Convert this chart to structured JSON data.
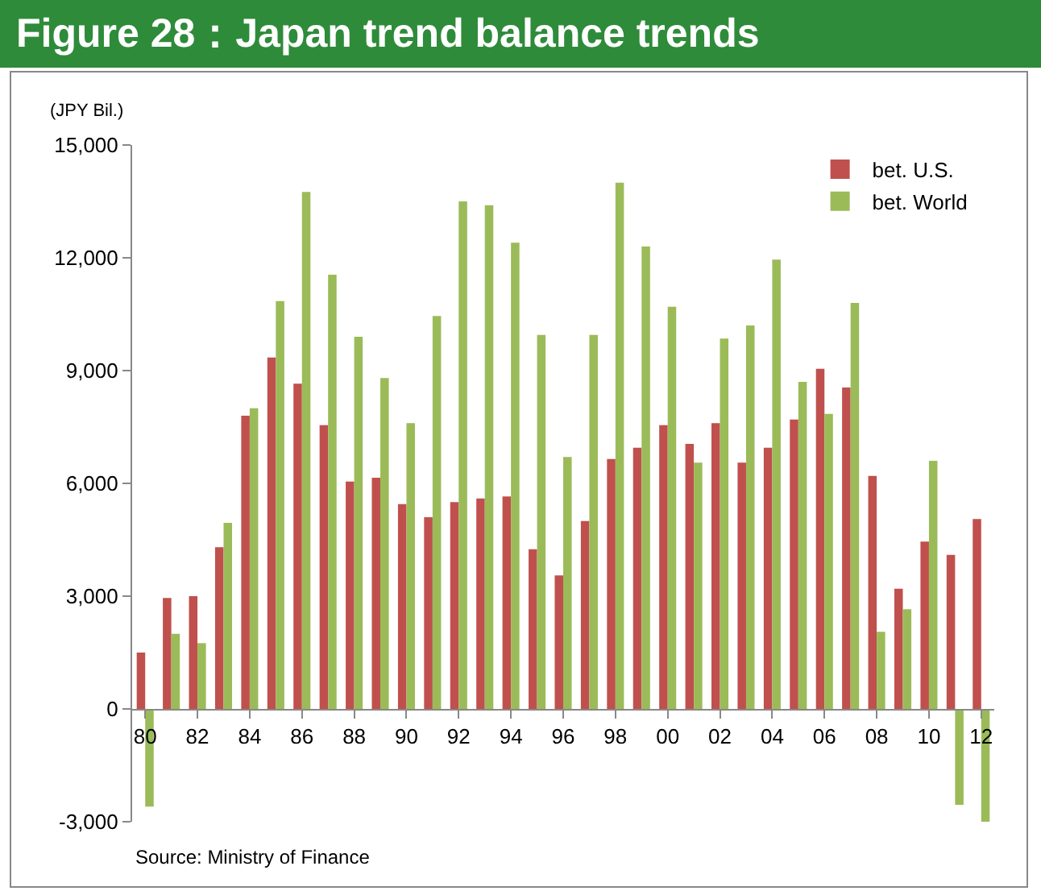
{
  "chart_data": {
    "type": "bar",
    "title": "Figure 28：Japan trend balance trends",
    "ylabel": "(JPY Bil.)",
    "categories": [
      "80",
      null,
      "82",
      null,
      "84",
      null,
      "86",
      null,
      "88",
      null,
      "90",
      null,
      "92",
      null,
      "94",
      null,
      "96",
      null,
      "98",
      null,
      "00",
      null,
      "02",
      null,
      "04",
      null,
      "06",
      null,
      "08",
      null,
      "10",
      null,
      "12"
    ],
    "series": [
      {
        "name": "bet. U.S.",
        "color": "#c0504d",
        "values": [
          1500,
          2950,
          3000,
          4300,
          7800,
          9350,
          8650,
          7550,
          6050,
          6150,
          5450,
          5100,
          5500,
          5600,
          5650,
          4250,
          3550,
          5000,
          6650,
          6950,
          7550,
          7050,
          7600,
          6550,
          6950,
          7700,
          9050,
          8550,
          6200,
          3200,
          4450,
          4100,
          5050
        ]
      },
      {
        "name": "bet. World",
        "color": "#9bbb59",
        "values": [
          -2600,
          2000,
          1750,
          4950,
          8000,
          10850,
          13750,
          11550,
          9900,
          8800,
          7600,
          10450,
          13500,
          13400,
          12400,
          9950,
          6700,
          9950,
          14000,
          12300,
          10700,
          6550,
          9850,
          10200,
          11950,
          8700,
          7850,
          10800,
          2050,
          2650,
          6600,
          -2550,
          -3000
        ]
      }
    ],
    "ylim": [
      -3000,
      15000
    ],
    "yticks": [
      {
        "value": -3000,
        "label": "-3,000"
      },
      {
        "value": 0,
        "label": "0"
      },
      {
        "value": 3000,
        "label": "3,000"
      },
      {
        "value": 6000,
        "label": "6,000"
      },
      {
        "value": 9000,
        "label": "9,000"
      },
      {
        "value": 12000,
        "label": "12,000"
      },
      {
        "value": 15000,
        "label": "15,000"
      }
    ],
    "grid": false,
    "legend": "top right",
    "annotations": [
      "Source: Ministry of Finance"
    ]
  }
}
